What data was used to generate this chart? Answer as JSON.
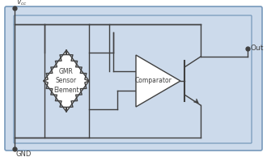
{
  "bg_color": "#ccdaeb",
  "border_color": "#7799bb",
  "line_color": "#404040",
  "fig_bg": "#ffffff",
  "gnd_label": "GND",
  "out_label": "Out",
  "gmr_label": "GMR\nSensor\nElement",
  "comp_label": "Comparator",
  "fig_width": 3.3,
  "fig_height": 1.94,
  "dpi": 100
}
